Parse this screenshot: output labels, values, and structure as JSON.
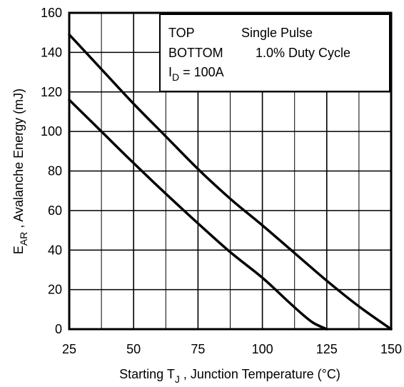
{
  "chart_data": {
    "type": "line",
    "xlabel": {
      "prefix": "Starting T",
      "sub": "J",
      "suffix": " , Junction Temperature (°C)"
    },
    "ylabel": {
      "prefix": "E",
      "sub": "AR",
      "suffix": " , Avalanche Energy (mJ)"
    },
    "xlim": [
      25,
      150
    ],
    "ylim": [
      0,
      160
    ],
    "x_ticks": [
      "25",
      "50",
      "75",
      "100",
      "125",
      "150"
    ],
    "y_ticks": [
      "0",
      "20",
      "40",
      "60",
      "80",
      "100",
      "120",
      "140",
      "160"
    ],
    "grid": true,
    "legend": {
      "placement": "top-right",
      "top_label": "TOP",
      "top_value": "Single Pulse",
      "bottom_label": "BOTTOM",
      "bottom_value": "1.0% Duty Cycle",
      "id_prefix": "I",
      "id_sub": "D",
      "id_suffix": " = 100A"
    },
    "series": [
      {
        "x": [
          25,
          37.5,
          50,
          62.5,
          75,
          87.5,
          100,
          112.5,
          125,
          137.5,
          150
        ],
        "values": [
          149,
          131.5,
          114,
          97.5,
          81,
          66,
          52.5,
          38.5,
          24.5,
          11.5,
          0
        ]
      },
      {
        "x": [
          25,
          37.5,
          50,
          62.5,
          75,
          87.5,
          100,
          110,
          116,
          120,
          125
        ],
        "values": [
          116,
          100,
          84,
          68.5,
          53.5,
          39,
          26,
          14,
          7,
          3,
          0
        ]
      }
    ],
    "colors": {
      "line": "#000000",
      "grid": "#000000",
      "frame": "#000000"
    }
  }
}
